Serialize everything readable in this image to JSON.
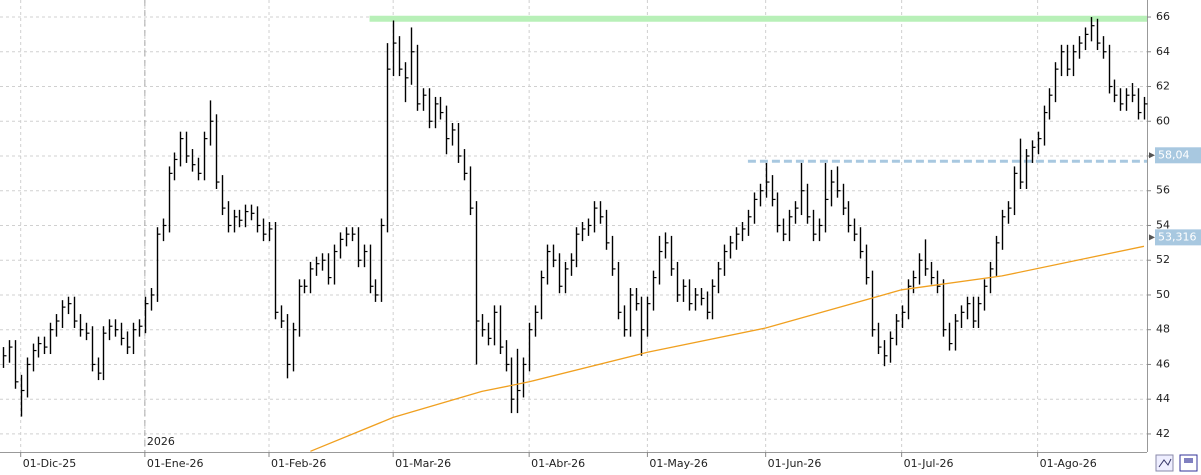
{
  "chart_data": {
    "type": "ohlc",
    "xlim": [
      -0.5,
      193.5
    ],
    "ylim": [
      40.96,
      66.98
    ],
    "xticks": [
      {
        "value": 3,
        "label": "01-Dic-25"
      },
      {
        "value": 24,
        "label": "01-Ene-26"
      },
      {
        "value": 45,
        "label": "01-Feb-26"
      },
      {
        "value": 66,
        "label": "01-Mar-26"
      },
      {
        "value": 89,
        "label": "01-Abr-26"
      },
      {
        "value": 109,
        "label": "01-May-26"
      },
      {
        "value": 129,
        "label": "01-Jun-26"
      },
      {
        "value": 152,
        "label": "01-Jul-26"
      },
      {
        "value": 175,
        "label": "01-Ago-26"
      }
    ],
    "yticks": [
      42,
      44,
      46,
      48,
      50,
      52,
      54,
      56,
      58,
      60,
      62,
      64,
      66
    ],
    "grid": true,
    "annotations": [
      {
        "text": "2026",
        "x": 24
      }
    ],
    "x": [
      0,
      1,
      2,
      3,
      4,
      5,
      6,
      7,
      8,
      9,
      10,
      11,
      12,
      13,
      14,
      15,
      16,
      17,
      18,
      19,
      20,
      21,
      22,
      23,
      24,
      25,
      26,
      27,
      28,
      29,
      30,
      31,
      32,
      33,
      34,
      35,
      36,
      37,
      38,
      39,
      40,
      41,
      42,
      43,
      44,
      45,
      46,
      47,
      48,
      49,
      50,
      51,
      52,
      53,
      54,
      55,
      56,
      57,
      58,
      59,
      60,
      61,
      62,
      63,
      64,
      65,
      66,
      67,
      68,
      69,
      70,
      71,
      72,
      73,
      74,
      75,
      76,
      77,
      78,
      79,
      80,
      81,
      82,
      83,
      84,
      85,
      86,
      87,
      88,
      89,
      90,
      91,
      92,
      93,
      94,
      95,
      96,
      97,
      98,
      99,
      100,
      101,
      102,
      103,
      104,
      105,
      106,
      107,
      108,
      109,
      110,
      111,
      112,
      113,
      114,
      115,
      116,
      117,
      118,
      119,
      120,
      121,
      122,
      123,
      124,
      125,
      126,
      127,
      128,
      129,
      130,
      131,
      132,
      133,
      134,
      135,
      136,
      137,
      138,
      139,
      140,
      141,
      142,
      143,
      144,
      145,
      146,
      147,
      148,
      149,
      150,
      151,
      152,
      153,
      154,
      155,
      156,
      157,
      158,
      159,
      160,
      161,
      162,
      163,
      164,
      165,
      166,
      167,
      168,
      169,
      170,
      171,
      172,
      173,
      174,
      175,
      176,
      177,
      178,
      179,
      180,
      181,
      182,
      183,
      184,
      185,
      186,
      187,
      188,
      189,
      190,
      191,
      192,
      193
    ],
    "series": [
      {
        "color": "#000000",
        "high": [
          47.0,
          47.4,
          47.4,
          45.4,
          46.4,
          47.2,
          47.6,
          47.6,
          48.4,
          48.9,
          49.7,
          49.9,
          49.9,
          48.9,
          48.4,
          48.2,
          46.4,
          48.2,
          48.6,
          48.6,
          48.4,
          47.9,
          48.4,
          48.6,
          49.9,
          50.4,
          53.9,
          54.4,
          57.4,
          58.2,
          59.4,
          59.4,
          58.4,
          57.9,
          59.4,
          61.2,
          60.4,
          56.9,
          55.4,
          54.9,
          54.9,
          55.2,
          55.2,
          55.1,
          54.4,
          54.2,
          54.2,
          49.4,
          48.9,
          48.4,
          50.9,
          50.9,
          51.9,
          52.2,
          52.4,
          52.4,
          52.9,
          53.6,
          53.9,
          53.9,
          53.9,
          52.9,
          52.9,
          50.9,
          54.4,
          64.5,
          65.8,
          64.9,
          63.4,
          65.4,
          64.4,
          61.9,
          61.9,
          61.4,
          61.4,
          60.9,
          59.9,
          59.9,
          58.4,
          57.4,
          55.4,
          48.9,
          48.4,
          49.4,
          49.4,
          47.4,
          46.4,
          46.9,
          46.4,
          48.4,
          49.4,
          51.4,
          52.9,
          52.9,
          52.4,
          51.9,
          52.4,
          53.9,
          54.2,
          54.4,
          55.4,
          55.4,
          54.9,
          53.4,
          51.9,
          49.4,
          50.4,
          50.4,
          49.9,
          49.9,
          51.4,
          53.4,
          53.6,
          53.4,
          51.9,
          50.9,
          50.9,
          50.4,
          50.4,
          50.2,
          50.9,
          51.9,
          52.9,
          53.4,
          53.9,
          54.2,
          54.9,
          55.9,
          56.4,
          57.6,
          56.9,
          55.9,
          54.4,
          54.9,
          55.4,
          57.6,
          56.4,
          54.9,
          54.4,
          57.6,
          57.2,
          57.4,
          56.4,
          55.4,
          54.4,
          53.9,
          52.9,
          51.4,
          48.4,
          47.4,
          47.9,
          48.9,
          49.4,
          50.9,
          51.4,
          52.4,
          53.2,
          51.9,
          51.4,
          50.9,
          48.4,
          48.9,
          49.4,
          49.9,
          49.9,
          49.9,
          50.9,
          51.9,
          53.4,
          54.9,
          55.4,
          57.4,
          59.0,
          58.4,
          58.9,
          59.4,
          60.9,
          61.9,
          63.4,
          64.4,
          64.4,
          64.4,
          64.9,
          65.4,
          66.0,
          65.9,
          64.9,
          64.4,
          62.4,
          61.9,
          61.9,
          62.2,
          61.9,
          61.4
        ],
        "low": [
          45.8,
          46.1,
          44.6,
          43.0,
          44.1,
          45.6,
          46.4,
          46.6,
          46.6,
          47.6,
          48.1,
          48.9,
          48.1,
          47.6,
          47.4,
          45.6,
          45.1,
          45.1,
          47.4,
          47.6,
          47.1,
          46.6,
          46.6,
          47.6,
          47.8,
          49.1,
          49.6,
          53.1,
          53.6,
          56.6,
          57.4,
          57.6,
          57.1,
          56.6,
          56.6,
          58.6,
          56.1,
          54.6,
          53.6,
          53.6,
          53.9,
          53.9,
          54.3,
          53.6,
          53.1,
          53.1,
          48.6,
          48.1,
          45.2,
          45.6,
          47.6,
          50.1,
          50.1,
          51.1,
          51.4,
          50.6,
          50.6,
          52.1,
          52.8,
          53.1,
          51.6,
          51.6,
          50.1,
          49.6,
          49.6,
          53.6,
          62.6,
          62.6,
          61.1,
          62.1,
          60.6,
          60.6,
          59.6,
          59.6,
          60.1,
          58.1,
          58.6,
          57.6,
          56.6,
          54.6,
          46.0,
          47.6,
          47.1,
          47.1,
          46.6,
          45.6,
          43.2,
          43.2,
          44.1,
          45.6,
          47.6,
          48.6,
          50.6,
          51.6,
          50.1,
          50.1,
          51.1,
          51.6,
          53.1,
          53.4,
          53.6,
          54.1,
          52.6,
          51.1,
          48.6,
          47.6,
          47.6,
          49.1,
          46.5,
          47.6,
          49.1,
          50.6,
          52.1,
          51.1,
          49.6,
          49.6,
          49.1,
          49.1,
          49.4,
          48.6,
          48.6,
          50.1,
          51.1,
          52.1,
          52.6,
          53.1,
          53.4,
          54.1,
          55.1,
          55.6,
          55.1,
          53.6,
          53.1,
          53.1,
          54.1,
          54.6,
          54.1,
          53.1,
          53.1,
          53.6,
          55.1,
          55.6,
          54.6,
          53.6,
          53.1,
          52.1,
          50.6,
          47.6,
          46.6,
          45.9,
          46.1,
          47.1,
          48.1,
          48.6,
          50.1,
          50.6,
          51.1,
          50.6,
          50.1,
          47.6,
          46.8,
          46.8,
          48.1,
          48.6,
          48.1,
          48.1,
          49.1,
          50.1,
          51.1,
          52.6,
          54.1,
          54.6,
          56.1,
          56.1,
          57.6,
          58.1,
          58.6,
          60.1,
          61.1,
          62.6,
          62.6,
          62.6,
          63.6,
          64.1,
          64.6,
          64.1,
          63.6,
          61.6,
          61.1,
          60.6,
          60.6,
          61.1,
          60.1,
          60.1
        ],
        "close": [
          46.5,
          47,
          45,
          44.5,
          46,
          46.8,
          47.2,
          47,
          48,
          48.5,
          49.3,
          49.5,
          48.5,
          48,
          47.8,
          46,
          45.5,
          47.8,
          48.2,
          48,
          47.5,
          47,
          48,
          48.2,
          49.5,
          50,
          53.5,
          54,
          57,
          57.8,
          59,
          58,
          57.5,
          57,
          59,
          60,
          56.5,
          55,
          54,
          54.5,
          54.3,
          54.8,
          54.7,
          54,
          53.5,
          53.8,
          49,
          48.5,
          46,
          48,
          50.5,
          50.5,
          51.5,
          51.8,
          52,
          51,
          52.5,
          53.2,
          53.5,
          53.5,
          52,
          52.5,
          50.5,
          50,
          54,
          63,
          64.5,
          63,
          62.5,
          64,
          61,
          61.5,
          60,
          61,
          60.5,
          59,
          59.5,
          58,
          57,
          55,
          48.5,
          48,
          47.5,
          49,
          47,
          46,
          44,
          44.5,
          46,
          48,
          49,
          51,
          52.5,
          52,
          50.5,
          51.5,
          52,
          53.5,
          53.8,
          54,
          55,
          54.5,
          53,
          51.5,
          49,
          48,
          50,
          49.5,
          48,
          49.5,
          51,
          52.5,
          53,
          51.5,
          50,
          50.5,
          49.5,
          50,
          49.8,
          49,
          50.5,
          51.5,
          52.5,
          53,
          53.5,
          53.8,
          54.5,
          55.5,
          56,
          56.5,
          55.5,
          54,
          53.5,
          54.5,
          55,
          56,
          54.5,
          53.5,
          54,
          55.5,
          56.5,
          56,
          55,
          54,
          53.5,
          52.5,
          51,
          48,
          47,
          46.5,
          47.5,
          48.5,
          49,
          50.5,
          51,
          52,
          51.5,
          51,
          50.5,
          48,
          47.2,
          48.5,
          49,
          49.5,
          48.5,
          49.5,
          50.5,
          51.5,
          53,
          54.5,
          55,
          57,
          56.5,
          58,
          58.5,
          59,
          60.5,
          61.5,
          63,
          64,
          63,
          64,
          64.5,
          65,
          65.5,
          64.5,
          64,
          62,
          61.5,
          61,
          61.5,
          61.5,
          60.5,
          61
        ]
      },
      {
        "type": "line",
        "color": "#f0a020",
        "x": [
          52,
          66,
          81,
          89,
          109,
          129,
          152,
          169,
          193
        ],
        "values": [
          41,
          42.95,
          44.45,
          45,
          46.7,
          48.1,
          50.3,
          51.1,
          52.8
        ]
      }
    ],
    "levels": [
      {
        "value": 65.9,
        "x_start": 62,
        "color": "#b8f0b8",
        "style": "solid"
      },
      {
        "value": 57.7,
        "x_start": 126,
        "color": "#a8c8e0",
        "style": "dashed"
      }
    ],
    "value_labels": [
      {
        "value": 58.04,
        "label": "58,04",
        "color": "#a8c8e0"
      },
      {
        "value": 53.316,
        "label": "53,316",
        "color": "#a8c8e0"
      }
    ]
  }
}
